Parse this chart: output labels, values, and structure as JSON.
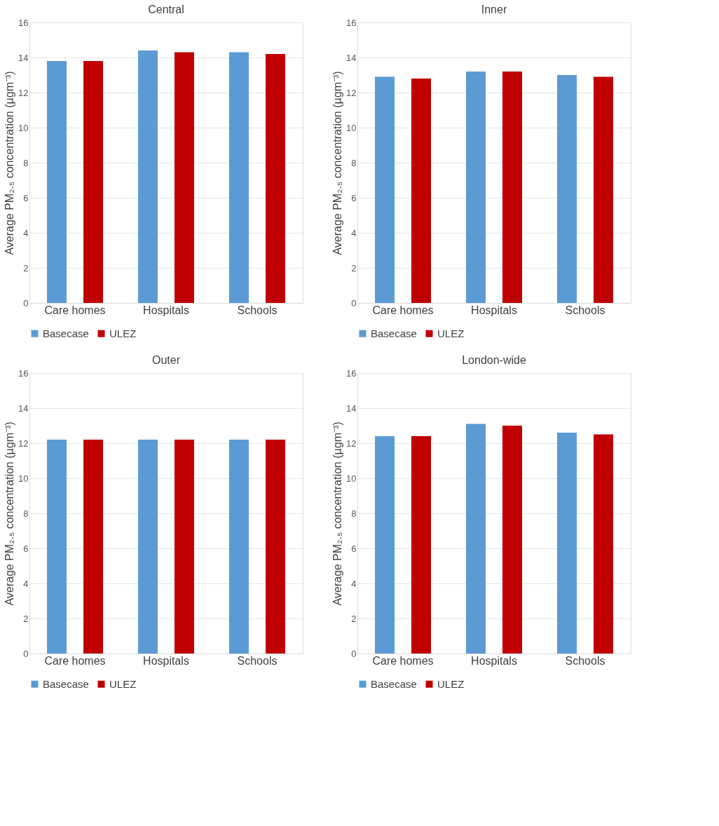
{
  "chart_data": [
    {
      "type": "bar",
      "title": "Central",
      "categories": [
        "Care homes",
        "Hospitals",
        "Schools"
      ],
      "ylabel": "Average PM₂.₅ concentration (µgm⁻³)",
      "ylim": [
        0,
        16
      ],
      "yticks": [
        0,
        2,
        4,
        6,
        8,
        10,
        12,
        14,
        16
      ],
      "grid": "y",
      "legend": "bottom",
      "series": [
        {
          "name": "Basecase",
          "color": "#5b9bd5",
          "values": [
            13.8,
            14.4,
            14.3
          ]
        },
        {
          "name": "ULEZ",
          "color": "#c00000",
          "values": [
            13.8,
            14.3,
            14.2
          ]
        }
      ]
    },
    {
      "type": "bar",
      "title": "Inner",
      "categories": [
        "Care homes",
        "Hospitals",
        "Schools"
      ],
      "ylabel": "Average PM₂.₅ concentration (µgm⁻³)",
      "ylim": [
        0,
        16
      ],
      "yticks": [
        0,
        2,
        4,
        6,
        8,
        10,
        12,
        14,
        16
      ],
      "grid": "y",
      "legend": "bottom",
      "series": [
        {
          "name": "Basecase",
          "color": "#5b9bd5",
          "values": [
            12.9,
            13.2,
            13.0
          ]
        },
        {
          "name": "ULEZ",
          "color": "#c00000",
          "values": [
            12.8,
            13.2,
            12.9
          ]
        }
      ]
    },
    {
      "type": "bar",
      "title": "Outer",
      "categories": [
        "Care homes",
        "Hospitals",
        "Schools"
      ],
      "ylabel": "Average PM₂.₅ concentration (µgm⁻³)",
      "ylim": [
        0,
        16
      ],
      "yticks": [
        0,
        2,
        4,
        6,
        8,
        10,
        12,
        14,
        16
      ],
      "grid": "y",
      "legend": "bottom",
      "series": [
        {
          "name": "Basecase",
          "color": "#5b9bd5",
          "values": [
            12.2,
            12.2,
            12.2
          ]
        },
        {
          "name": "ULEZ",
          "color": "#c00000",
          "values": [
            12.2,
            12.2,
            12.2
          ]
        }
      ]
    },
    {
      "type": "bar",
      "title": "London-wide",
      "categories": [
        "Care homes",
        "Hospitals",
        "Schools"
      ],
      "ylabel": "Average PM₂.₅ concentration (µgm⁻³)",
      "ylim": [
        0,
        16
      ],
      "yticks": [
        0,
        2,
        4,
        6,
        8,
        10,
        12,
        14,
        16
      ],
      "grid": "y",
      "legend": "bottom",
      "series": [
        {
          "name": "Basecase",
          "color": "#5b9bd5",
          "values": [
            12.4,
            13.1,
            12.6
          ]
        },
        {
          "name": "ULEZ",
          "color": "#c00000",
          "values": [
            12.4,
            13.0,
            12.5
          ]
        }
      ]
    }
  ]
}
